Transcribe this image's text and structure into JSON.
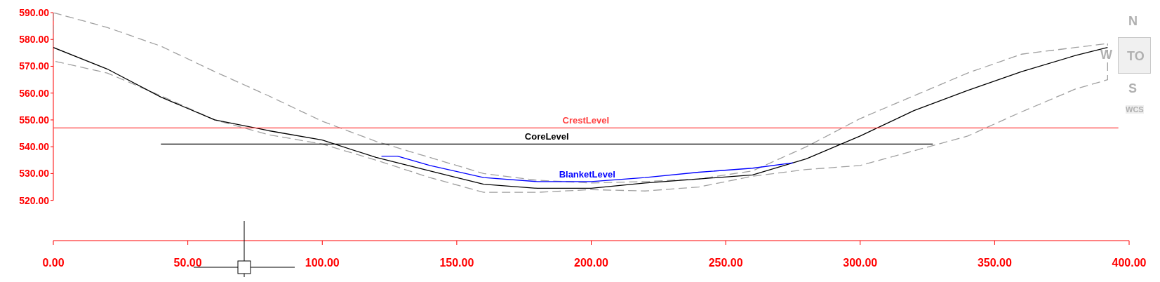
{
  "chart_data": {
    "type": "line",
    "xlim": [
      0,
      400
    ],
    "xticks": [
      {
        "value": 0,
        "label": "0.00"
      },
      {
        "value": 50,
        "label": "50.00"
      },
      {
        "value": 100,
        "label": "100.00"
      },
      {
        "value": 150,
        "label": "150.00"
      },
      {
        "value": 200,
        "label": "200.00"
      },
      {
        "value": 250,
        "label": "250.00"
      },
      {
        "value": 300,
        "label": "300.00"
      },
      {
        "value": 350,
        "label": "350.00"
      },
      {
        "value": 400,
        "label": "400.00"
      }
    ],
    "ylim": [
      505,
      590
    ],
    "yticks": [
      {
        "value": 520,
        "label": "520.00"
      },
      {
        "value": 530,
        "label": "530.00"
      },
      {
        "value": 540,
        "label": "540.00"
      },
      {
        "value": 550,
        "label": "550.00"
      },
      {
        "value": 560,
        "label": "560.00"
      },
      {
        "value": 570,
        "label": "570.00"
      },
      {
        "value": 580,
        "label": "580.00"
      },
      {
        "value": 590,
        "label": "590.00"
      }
    ],
    "marker": "none",
    "series": [
      {
        "color": "#a0a0a0",
        "line_style": "dashed",
        "x": [
          0,
          20,
          40,
          60,
          80,
          100,
          120,
          140,
          160,
          180,
          200,
          220,
          240,
          260,
          280,
          300,
          320,
          340,
          360,
          380,
          392
        ],
        "values": [
          590,
          584.5,
          577.5,
          568,
          559,
          549.5,
          542,
          536,
          530,
          527.5,
          526.5,
          527,
          528,
          531,
          540,
          550.5,
          559,
          567.5,
          574.5,
          577,
          578.5
        ]
      },
      {
        "color": "#a0a0a0",
        "line_style": "dashed",
        "x": [
          0,
          0,
          20,
          40,
          60,
          80,
          100,
          120,
          140,
          160,
          180,
          200,
          220,
          240,
          260,
          280,
          300,
          320,
          340,
          360,
          380,
          392,
          392
        ],
        "values": [
          590,
          572,
          567.5,
          559,
          550,
          544.5,
          541,
          535,
          528.5,
          523,
          523,
          524,
          523.5,
          525,
          529,
          531.5,
          533,
          538.5,
          544,
          553,
          561.5,
          565,
          578.5
        ]
      },
      {
        "color": "#000000",
        "line_style": "solid",
        "x": [
          0,
          20,
          40,
          60,
          80,
          100,
          120,
          140,
          160,
          180,
          200,
          220,
          240,
          260,
          280,
          300,
          320,
          340,
          360,
          380,
          392
        ],
        "values": [
          577,
          569,
          558.5,
          550,
          546,
          542.5,
          536,
          531,
          526,
          524.5,
          524.5,
          526.5,
          528,
          529.5,
          535.5,
          544,
          553.5,
          561,
          568,
          574,
          577
        ]
      },
      {
        "name": "BlanketLevel",
        "color": "#0000ff",
        "line_style": "solid",
        "x": [
          122,
          128,
          140,
          160,
          180,
          200,
          220,
          240,
          260,
          275
        ],
        "values": [
          536.5,
          536.5,
          533,
          528.5,
          527,
          527,
          528.5,
          530.5,
          532,
          534
        ]
      },
      {
        "name": "CoreLevel",
        "color": "#000000",
        "line_style": "solid",
        "x": [
          40,
          327
        ],
        "values": [
          541,
          541
        ]
      },
      {
        "name": "CrestLevel",
        "color": "#ff4040",
        "line_style": "solid",
        "x": [
          0,
          396
        ],
        "values": [
          547,
          547
        ]
      }
    ],
    "annotations": [
      "N",
      "W",
      "TO",
      "S",
      "WCS"
    ]
  }
}
